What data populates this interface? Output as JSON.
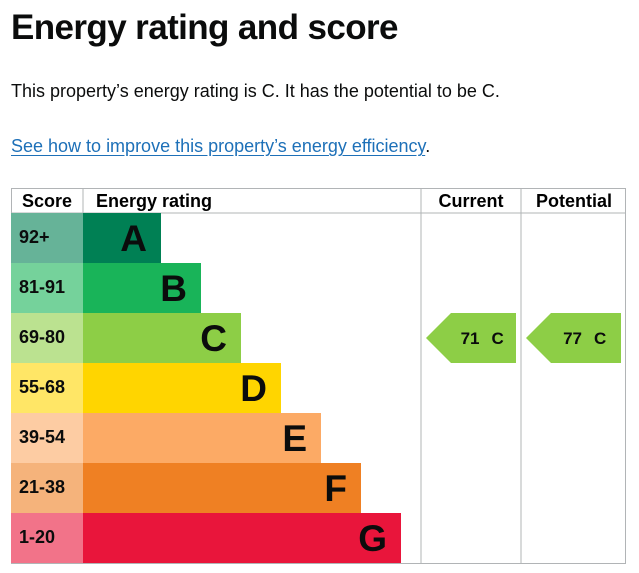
{
  "page": {
    "title": "Energy rating and score",
    "summary": "This property’s energy rating is C. It has the potential to be C.",
    "improve_link": "See how to improve this property’s energy efficiency",
    "improve_suffix": "."
  },
  "epc_table": {
    "headers": {
      "score": "Score",
      "rating": "Energy rating",
      "current": "Current",
      "potential": "Potential"
    },
    "bands": [
      {
        "score": "92+",
        "letter": "A",
        "color": "#008054",
        "score_bg": "#66b398"
      },
      {
        "score": "81-91",
        "letter": "B",
        "color": "#19b459",
        "score_bg": "#75d29b"
      },
      {
        "score": "69-80",
        "letter": "C",
        "color": "#8dce46",
        "score_bg": "#bbe290"
      },
      {
        "score": "55-68",
        "letter": "D",
        "color": "#ffd500",
        "score_bg": "#ffe666"
      },
      {
        "score": "39-54",
        "letter": "E",
        "color": "#fcaa65",
        "score_bg": "#fdcca3"
      },
      {
        "score": "21-38",
        "letter": "F",
        "color": "#ef8023",
        "score_bg": "#f5b37b"
      },
      {
        "score": "1-20",
        "letter": "G",
        "color": "#e9153b",
        "score_bg": "#f27389"
      }
    ],
    "current": {
      "value": "71",
      "letter": "C",
      "band_index": 2,
      "color": "#8dce46"
    },
    "potential": {
      "value": "77",
      "letter": "C",
      "band_index": 2,
      "color": "#8dce46"
    }
  }
}
